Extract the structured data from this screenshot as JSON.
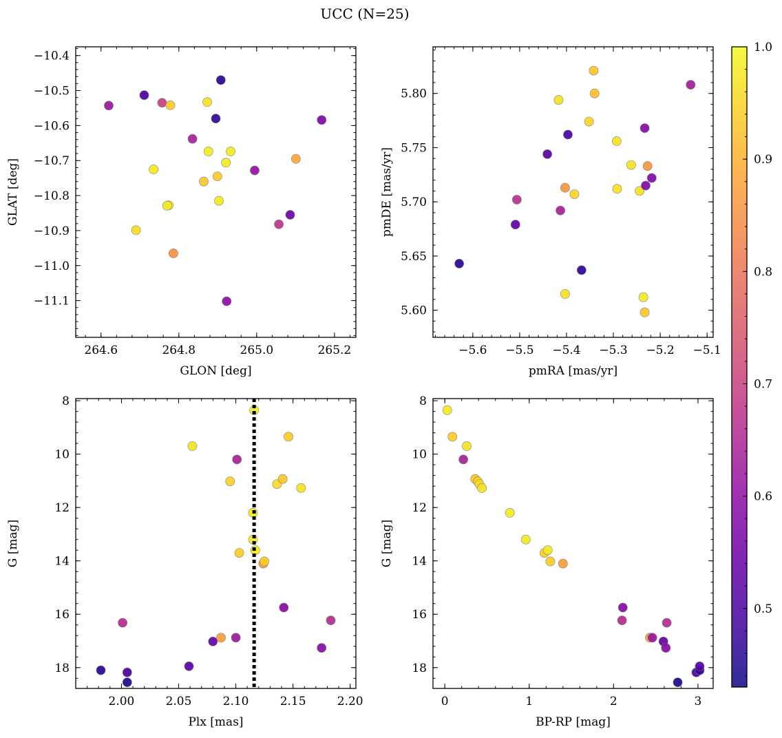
{
  "title": "UCC (N=25)",
  "colorbar": {
    "min": 0.43,
    "max": 1.0,
    "ticks": [
      0.5,
      0.6,
      0.7,
      0.8,
      0.9,
      1.0
    ],
    "tick_labels": [
      "0.5",
      "0.6",
      "0.7",
      "0.8",
      "0.9",
      "1.0"
    ],
    "colormap": "plasma",
    "alpha": 0.85
  },
  "chart_data": [
    {
      "type": "scatter",
      "xlabel": "GLON [deg]",
      "ylabel": "GLAT [deg]",
      "xlim": [
        264.535,
        265.255
      ],
      "ylim": [
        -11.205,
        -10.375
      ],
      "y_inverted": false,
      "xticks": [
        264.6,
        264.8,
        265.0,
        265.2
      ],
      "xtick_labels": [
        "264.6",
        "264.8",
        "265.0",
        "265.2"
      ],
      "yticks": [
        -11.1,
        -11.0,
        -10.9,
        -10.8,
        -10.7,
        -10.6,
        -10.5,
        -10.4
      ],
      "ytick_labels": [
        "−11.1",
        "−11.0",
        "−10.9",
        "−10.8",
        "−10.7",
        "−10.6",
        "−10.5",
        "−10.4"
      ],
      "x": [
        264.62,
        264.711,
        264.757,
        264.778,
        264.873,
        264.908,
        264.895,
        264.835,
        264.933,
        264.876,
        264.735,
        264.921,
        264.864,
        264.899,
        264.774,
        264.77,
        264.903,
        264.69,
        264.786,
        264.923,
        264.995,
        265.101,
        265.086,
        265.057,
        265.167
      ],
      "y": [
        -10.543,
        -10.513,
        -10.535,
        -10.542,
        -10.533,
        -10.47,
        -10.58,
        -10.638,
        -10.674,
        -10.674,
        -10.725,
        -10.706,
        -10.76,
        -10.745,
        -10.828,
        -10.829,
        -10.815,
        -10.899,
        -10.965,
        -11.102,
        -10.728,
        -10.695,
        -10.855,
        -10.882,
        -10.584
      ],
      "c": [
        0.62,
        0.5,
        0.7,
        0.94,
        0.97,
        0.46,
        0.47,
        0.64,
        0.98,
        0.98,
        0.98,
        0.98,
        0.93,
        0.94,
        0.98,
        0.98,
        0.98,
        0.96,
        0.85,
        0.6,
        0.61,
        0.89,
        0.55,
        0.68,
        0.58
      ]
    },
    {
      "type": "scatter",
      "xlabel": "pmRA [mas/yr]",
      "ylabel": "pmDE [mas/yr]",
      "xlim": [
        -5.685,
        -5.087
      ],
      "ylim": [
        5.575,
        5.843
      ],
      "y_inverted": false,
      "xticks": [
        -5.6,
        -5.5,
        -5.4,
        -5.3,
        -5.2,
        -5.1
      ],
      "xtick_labels": [
        "−5.6",
        "−5.5",
        "−5.4",
        "−5.3",
        "−5.2",
        "−5.1"
      ],
      "yticks": [
        5.6,
        5.65,
        5.7,
        5.75,
        5.8
      ],
      "ytick_labels": [
        "5.60",
        "5.65",
        "5.70",
        "5.75",
        "5.80"
      ],
      "x": [
        -5.629,
        -5.509,
        -5.506,
        -5.441,
        -5.417,
        -5.413,
        -5.403,
        -5.397,
        -5.383,
        -5.368,
        -5.403,
        -5.352,
        -5.342,
        -5.34,
        -5.293,
        -5.292,
        -5.262,
        -5.244,
        -5.236,
        -5.233,
        -5.231,
        -5.227,
        -5.218,
        -5.233,
        -5.135
      ],
      "y": [
        5.643,
        5.679,
        5.702,
        5.744,
        5.794,
        5.692,
        5.713,
        5.762,
        5.707,
        5.637,
        5.615,
        5.774,
        5.821,
        5.8,
        5.756,
        5.712,
        5.734,
        5.71,
        5.612,
        5.768,
        5.715,
        5.733,
        5.722,
        5.598,
        5.808
      ],
      "c": [
        0.46,
        0.53,
        0.67,
        0.52,
        0.97,
        0.64,
        0.86,
        0.5,
        0.95,
        0.47,
        0.97,
        0.95,
        0.93,
        0.92,
        0.97,
        0.97,
        0.97,
        0.97,
        0.98,
        0.59,
        0.58,
        0.86,
        0.58,
        0.93,
        0.63
      ]
    },
    {
      "type": "scatter",
      "xlabel": "Plx [mas]",
      "ylabel": "G [mag]",
      "xlim": [
        1.96,
        2.205
      ],
      "ylim": [
        18.78,
        7.92
      ],
      "y_inverted": true,
      "xticks": [
        2.0,
        2.05,
        2.1,
        2.15,
        2.2
      ],
      "xtick_labels": [
        "2.00",
        "2.05",
        "2.10",
        "2.15",
        "2.20"
      ],
      "yticks": [
        8,
        10,
        12,
        14,
        16,
        18
      ],
      "ytick_labels": [
        "8",
        "10",
        "12",
        "14",
        "16",
        "18"
      ],
      "vline": {
        "x": 2.116,
        "style": "dotted"
      },
      "x": [
        1.982,
        2.005,
        2.005,
        2.001,
        2.059,
        2.062,
        2.08,
        2.087,
        2.1,
        2.101,
        2.095,
        2.103,
        2.116,
        2.115,
        2.115,
        2.117,
        2.124,
        2.125,
        2.136,
        2.141,
        2.146,
        2.142,
        2.157,
        2.175,
        2.183
      ],
      "y": [
        18.1,
        18.18,
        18.55,
        16.32,
        17.95,
        9.7,
        17.02,
        16.88,
        16.88,
        10.2,
        11.02,
        13.7,
        8.35,
        12.2,
        13.2,
        13.6,
        14.1,
        14.02,
        11.12,
        10.93,
        9.35,
        15.75,
        11.27,
        17.26,
        16.23
      ],
      "c": [
        0.46,
        0.5,
        0.45,
        0.66,
        0.52,
        0.97,
        0.54,
        0.87,
        0.62,
        0.64,
        0.95,
        0.94,
        0.99,
        0.98,
        0.98,
        0.98,
        0.87,
        0.94,
        0.96,
        0.93,
        0.94,
        0.59,
        0.97,
        0.59,
        0.66
      ]
    },
    {
      "type": "scatter",
      "xlabel": "BP-RP [mag]",
      "ylabel": "G [mag]",
      "xlim": [
        -0.14,
        3.18
      ],
      "ylim": [
        18.78,
        7.92
      ],
      "y_inverted": true,
      "xticks": [
        0,
        1,
        2,
        3
      ],
      "xtick_labels": [
        "0",
        "1",
        "2",
        "3"
      ],
      "yticks": [
        8,
        10,
        12,
        14,
        16,
        18
      ],
      "ytick_labels": [
        "8",
        "10",
        "12",
        "14",
        "16",
        "18"
      ],
      "x": [
        0.03,
        0.09,
        0.26,
        0.22,
        0.36,
        0.39,
        0.41,
        0.44,
        0.77,
        0.96,
        1.18,
        1.22,
        1.25,
        1.4,
        2.11,
        2.1,
        2.63,
        2.43,
        2.46,
        2.59,
        2.62,
        2.76,
        2.98,
        3.02,
        3.02
      ],
      "y": [
        8.35,
        9.35,
        9.7,
        10.2,
        10.93,
        11.02,
        11.12,
        11.27,
        12.2,
        13.2,
        13.7,
        13.6,
        14.02,
        14.1,
        15.75,
        16.23,
        16.32,
        16.88,
        16.88,
        17.02,
        17.26,
        18.55,
        18.18,
        18.1,
        17.95
      ],
      "c": [
        0.98,
        0.94,
        0.97,
        0.64,
        0.93,
        0.95,
        0.96,
        0.97,
        0.98,
        0.98,
        0.94,
        0.98,
        0.94,
        0.87,
        0.59,
        0.66,
        0.66,
        0.87,
        0.62,
        0.54,
        0.59,
        0.45,
        0.5,
        0.46,
        0.52
      ]
    }
  ]
}
